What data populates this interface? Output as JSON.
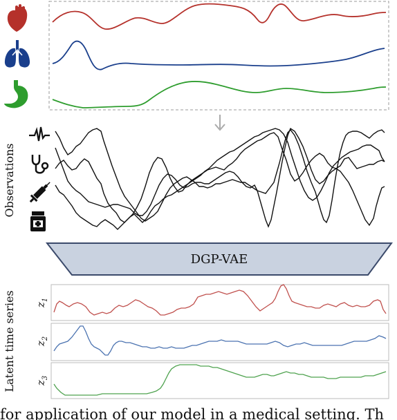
{
  "vae_label": "DGP-VAE",
  "observations_label": "Observations",
  "latent_label": "Latent time series",
  "latent_names": [
    "z1",
    "z2",
    "z3"
  ],
  "latent_names_display": [
    [
      "z",
      "1"
    ],
    [
      "z",
      "2"
    ],
    [
      "z",
      "3"
    ]
  ],
  "caption": "for application of our model in a medical setting. Th",
  "colors": {
    "heart": "#b5312b",
    "lungs": "#1a3f8c",
    "stomach": "#2e9d2e",
    "latent_red": "#c0504d",
    "latent_blue": "#4a72b0",
    "latent_green": "#4ea24e",
    "trapezoid_fill": "#c9d2e0",
    "trapezoid_stroke": "#3b4a6b"
  },
  "icons": {
    "organs": [
      "heart-icon",
      "lungs-icon",
      "stomach-icon"
    ],
    "observations": [
      "ecg-icon",
      "stethoscope-icon",
      "syringe-icon",
      "pill-bottle-icon"
    ]
  }
}
